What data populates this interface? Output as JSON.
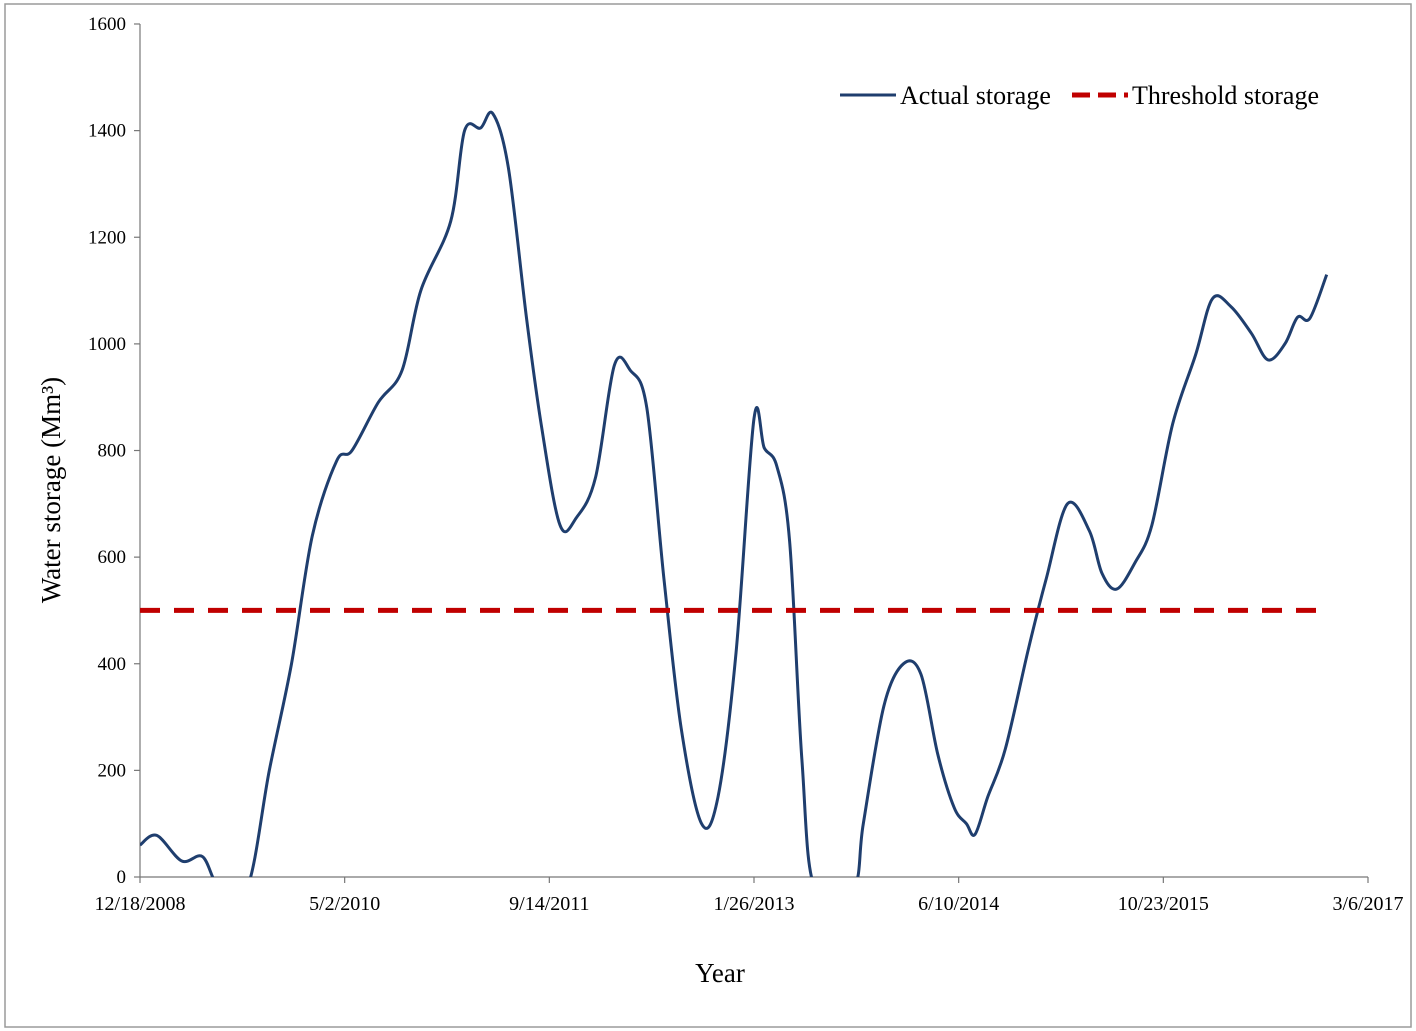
{
  "chart_data": {
    "type": "line",
    "xlabel": "Year",
    "ylabel": "Water storage (Mm³)",
    "ylim": [
      0,
      1600
    ],
    "xlim": [
      "12/18/2008",
      "3/6/2017"
    ],
    "yticks": [
      0,
      200,
      400,
      600,
      800,
      1000,
      1200,
      1400,
      1600
    ],
    "xticks": [
      "12/18/2008",
      "5/2/2010",
      "9/14/2011",
      "1/26/2013",
      "6/10/2014",
      "10/23/2015",
      "3/6/2017"
    ],
    "grid": false,
    "legend_position": "top-right",
    "series": [
      {
        "name": "Actual storage",
        "color": "#1f3e6e",
        "style": "solid",
        "points": [
          [
            "12/18/2008",
            60
          ],
          [
            "1/28/2009",
            78
          ],
          [
            "3/30/2009",
            30
          ],
          [
            "5/20/2009",
            38
          ],
          [
            "6/30/2009",
            -20
          ],
          [
            "9/6/2009",
            -20
          ],
          [
            "10/30/2009",
            200
          ],
          [
            "12/23/2009",
            400
          ],
          [
            "2/12/2010",
            640
          ],
          [
            "4/12/2010",
            780
          ],
          [
            "5/20/2010",
            800
          ],
          [
            "7/23/2010",
            890
          ],
          [
            "9/19/2010",
            950
          ],
          [
            "11/4/2010",
            1100
          ],
          [
            "1/16/2011",
            1230
          ],
          [
            "2/19/2011",
            1400
          ],
          [
            "3/30/2011",
            1405
          ],
          [
            "4/29/2011",
            1432
          ],
          [
            "6/6/2011",
            1330
          ],
          [
            "7/20/2011",
            1050
          ],
          [
            "8/25/2011",
            850
          ],
          [
            "10/10/2011",
            660
          ],
          [
            "11/20/2011",
            675
          ],
          [
            "1/5/2012",
            750
          ],
          [
            "2/20/2012",
            960
          ],
          [
            "3/30/2012",
            950
          ],
          [
            "5/9/2012",
            880
          ],
          [
            "6/20/2012",
            560
          ],
          [
            "8/1/2012",
            280
          ],
          [
            "9/20/2012",
            100
          ],
          [
            "10/30/2012",
            150
          ],
          [
            "12/13/2012",
            420
          ],
          [
            "1/26/2013",
            860
          ],
          [
            "2/20/2013",
            805
          ],
          [
            "3/23/2013",
            770
          ],
          [
            "4/23/2013",
            630
          ],
          [
            "5/23/2013",
            220
          ],
          [
            "6/23/2013",
            -20
          ],
          [
            "9/26/2013",
            -20
          ],
          [
            "10/20/2013",
            100
          ],
          [
            "12/9/2013",
            320
          ],
          [
            "1/26/2014",
            400
          ],
          [
            "3/10/2014",
            380
          ],
          [
            "4/20/2014",
            230
          ],
          [
            "5/30/2014",
            130
          ],
          [
            "6/29/2014",
            100
          ],
          [
            "7/20/2014",
            80
          ],
          [
            "8/20/2014",
            150
          ],
          [
            "10/2/2014",
            240
          ],
          [
            "11/28/2014",
            430
          ],
          [
            "1/10/2015",
            560
          ],
          [
            "3/3/2015",
            700
          ],
          [
            "4/25/2015",
            650
          ],
          [
            "5/26/2015",
            570
          ],
          [
            "7/1/2015",
            540
          ],
          [
            "8/15/2015",
            590
          ],
          [
            "9/25/2015",
            660
          ],
          [
            "11/15/2015",
            850
          ],
          [
            "1/10/2016",
            980
          ],
          [
            "2/20/2016",
            1085
          ],
          [
            "4/5/2016",
            1070
          ],
          [
            "5/25/2016",
            1020
          ],
          [
            "7/5/2016",
            970
          ],
          [
            "8/15/2016",
            1000
          ],
          [
            "9/15/2016",
            1050
          ],
          [
            "10/15/2016",
            1048
          ],
          [
            "11/25/2016",
            1130
          ]
        ]
      },
      {
        "name": "Threshold storage",
        "color": "#c00000",
        "style": "dashed",
        "points": [
          [
            "12/18/2008",
            500
          ],
          [
            "11/25/2016",
            500
          ]
        ]
      }
    ]
  }
}
